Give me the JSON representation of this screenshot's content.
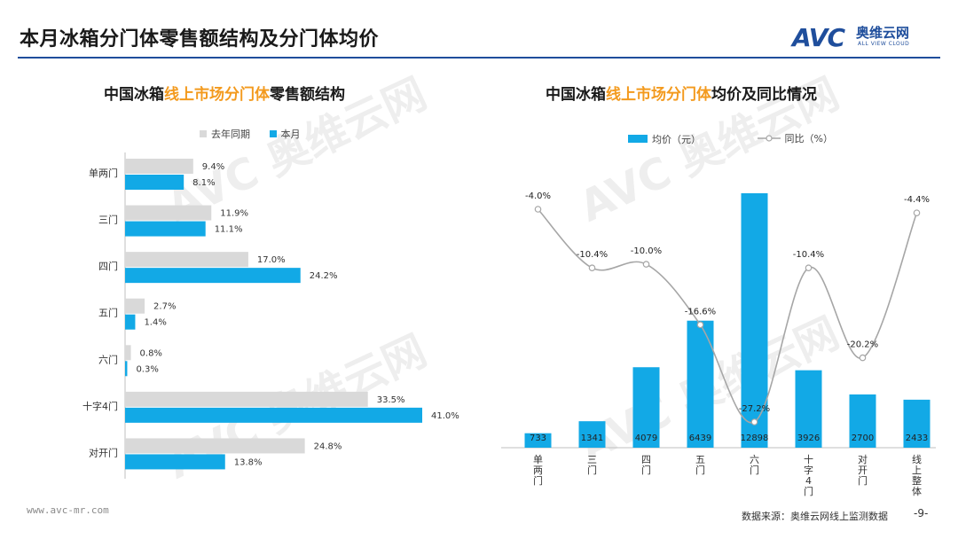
{
  "header": {
    "title": "本月冰箱分门体零售额结构及分门体均价",
    "logo_mark": "AVC",
    "logo_cn": "奥维云网",
    "logo_en": "ALL VIEW CLOUD"
  },
  "left_chart": {
    "title_parts": [
      "中国冰箱",
      "线上市场分门体",
      "零售额结构"
    ]
  },
  "right_chart": {
    "title_parts": [
      "中国冰箱",
      "线上市场分门体",
      "均价及同比情况"
    ]
  },
  "colors": {
    "blue": "#12a9e6",
    "gray": "#d9d9d9",
    "line": "#a6a6a6",
    "accent": "#f39a1e",
    "brand": "#1f4e9c"
  },
  "chart_data": [
    {
      "type": "bar",
      "orientation": "horizontal",
      "title": "中国冰箱线上市场分门体零售额结构",
      "categories": [
        "单两门",
        "三门",
        "四门",
        "五门",
        "六门",
        "十字4门",
        "对开门"
      ],
      "series": [
        {
          "name": "去年同期",
          "values": [
            9.4,
            11.9,
            17.0,
            2.7,
            0.8,
            33.5,
            24.8
          ],
          "labels": [
            "9.4%",
            "11.9%",
            "17.0%",
            "2.7%",
            "0.8%",
            "33.5%",
            "24.8%"
          ]
        },
        {
          "name": "本月",
          "values": [
            8.1,
            11.1,
            24.2,
            1.4,
            0.3,
            41.0,
            13.8
          ],
          "labels": [
            "8.1%",
            "11.1%",
            "24.2%",
            "1.4%",
            "0.3%",
            "41.0%",
            "13.8%"
          ]
        }
      ],
      "xlim": [
        0,
        50
      ],
      "unit": "%"
    },
    {
      "type": "bar+line",
      "title": "中国冰箱线上市场分门体均价及同比情况",
      "categories": [
        "单两门",
        "三门",
        "四门",
        "五门",
        "六门",
        "十字4门",
        "对开门",
        "线上整体"
      ],
      "series": [
        {
          "name": "均价（元）",
          "type": "bar",
          "values": [
            733,
            1341,
            4079,
            6439,
            12898,
            3926,
            2700,
            2433
          ],
          "labels": [
            "733",
            "1341",
            "4079",
            "6439",
            "12898",
            "3926",
            "2700",
            "2433"
          ]
        },
        {
          "name": "同比（%）",
          "type": "line",
          "values": [
            -4.0,
            -10.4,
            -10.0,
            -16.6,
            -27.2,
            -10.4,
            -20.2,
            -4.4
          ],
          "labels": [
            "-4.0%",
            "-10.4%",
            "-10.0%",
            "-16.6%",
            "-27.2%",
            "-10.4%",
            "-20.2%",
            "-4.4%"
          ]
        }
      ],
      "ylim_bar": [
        0,
        13500
      ],
      "ylim_line": [
        -28,
        -3
      ]
    }
  ],
  "footer": {
    "url": "www.avc-mr.com",
    "source": "数据来源：奥维云网线上监测数据",
    "page": "-9-"
  }
}
